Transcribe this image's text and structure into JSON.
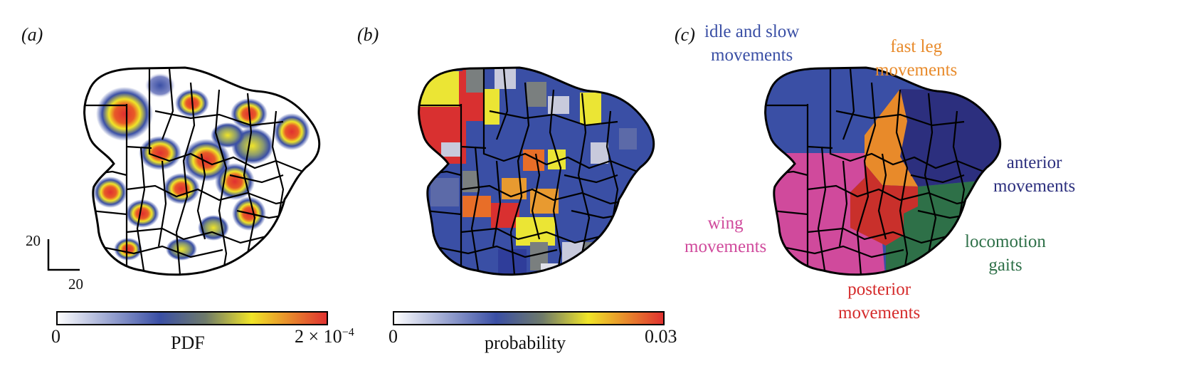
{
  "panels": {
    "a": {
      "label": "(a)",
      "scale_bar": {
        "vertical": "20",
        "horizontal": "20"
      },
      "colorbar": {
        "min": "0",
        "title": "PDF",
        "max_base": "2 × 10",
        "max_exp": "−4"
      }
    },
    "b": {
      "label": "(b)",
      "colorbar": {
        "min": "0",
        "title": "probability",
        "max": "0.03"
      }
    },
    "c": {
      "label": "(c)",
      "groups": [
        {
          "label": "idle and slow movements",
          "line1": "idle and slow",
          "line2": "movements",
          "color": "#3a4fa5"
        },
        {
          "label": "fast leg movements",
          "line1": "fast leg",
          "line2": "movements",
          "color": "#e88a2a"
        },
        {
          "label": "anterior movements",
          "line1": "anterior",
          "line2": "movements",
          "color": "#2c2f7e"
        },
        {
          "label": "locomotion gaits",
          "line1": "locomotion",
          "line2": "gaits",
          "color": "#2e7048"
        },
        {
          "label": "posterior movements",
          "line1": "posterior",
          "line2": "movements",
          "color": "#d52b2b"
        },
        {
          "label": "wing movements",
          "line1": "wing",
          "line2": "movements",
          "color": "#d04a9c"
        }
      ]
    }
  },
  "colors": {
    "scale": [
      "#ffffff",
      "#3a4fa5",
      "#f0e528",
      "#e03030"
    ],
    "outline": "#000000"
  }
}
